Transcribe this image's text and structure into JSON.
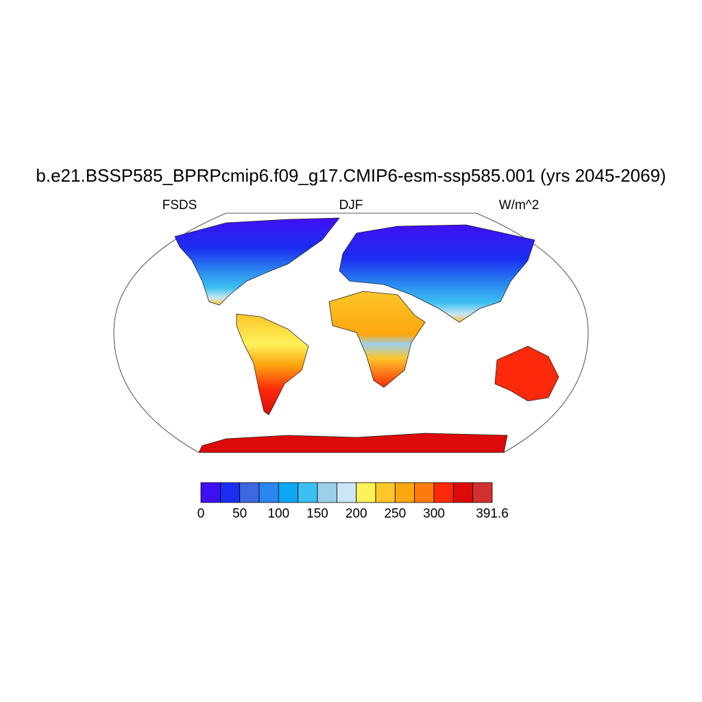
{
  "title": "b.e21.BSSP585_BPRPcmip6.f09_g17.CMIP6-esm-ssp585.001 (yrs 2045-2069)",
  "left_string": "FSDS",
  "center_string": "DJF",
  "right_string": "W/m^2",
  "colorbar": {
    "levels": [
      0,
      25,
      50,
      75,
      100,
      125,
      150,
      175,
      200,
      225,
      250,
      275,
      300,
      325,
      350,
      391.6
    ],
    "colors": [
      "#4010f5",
      "#1a2ef0",
      "#3d68e0",
      "#2a86f0",
      "#0ca8f5",
      "#3cc0f0",
      "#9ccfea",
      "#cce6f5",
      "#fff15a",
      "#fdc62a",
      "#fda70e",
      "#fd7b0a",
      "#fc2a0a",
      "#dc0a0a",
      "#d2302e"
    ],
    "ticks": [
      0,
      50,
      100,
      150,
      200,
      250,
      300,
      391.6
    ]
  }
}
